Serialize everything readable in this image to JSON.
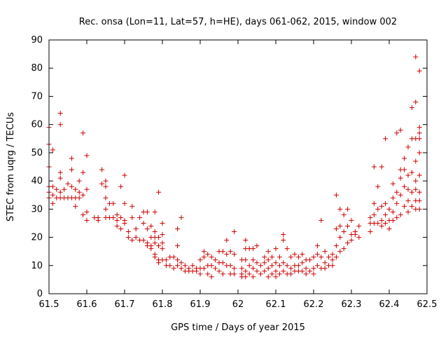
{
  "chart_data": {
    "type": "scatter",
    "title": "Rec. onsa (Lon=11, Lat=57, h=HE), days 061-062, 2015, window 002",
    "xlabel": "GPS time / Days of year 2015",
    "ylabel": "STEC from uqrg / TECUs",
    "xlim": [
      61.5,
      62.5
    ],
    "ylim": [
      0,
      90
    ],
    "xticks": [
      "61.5",
      "61.6",
      "61.7",
      "61.8",
      "61.9",
      "62",
      "62.1",
      "62.2",
      "62.3",
      "62.4",
      "62.5"
    ],
    "yticks": [
      "0",
      "10",
      "20",
      "30",
      "40",
      "50",
      "60",
      "70",
      "80",
      "90"
    ],
    "grid": false,
    "legend": "none",
    "marker": "+",
    "color": "#cc0000",
    "points": [
      [
        61.5,
        59
      ],
      [
        61.5,
        53
      ],
      [
        61.5,
        45
      ],
      [
        61.5,
        38
      ],
      [
        61.5,
        36
      ],
      [
        61.5,
        34
      ],
      [
        61.51,
        51
      ],
      [
        61.51,
        38
      ],
      [
        61.51,
        35
      ],
      [
        61.51,
        32
      ],
      [
        61.52,
        37
      ],
      [
        61.52,
        34
      ],
      [
        61.53,
        64
      ],
      [
        61.53,
        60
      ],
      [
        61.53,
        43
      ],
      [
        61.53,
        41
      ],
      [
        61.53,
        36
      ],
      [
        61.53,
        34
      ],
      [
        61.54,
        37
      ],
      [
        61.54,
        34
      ],
      [
        61.55,
        39
      ],
      [
        61.55,
        34
      ],
      [
        61.56,
        48
      ],
      [
        61.56,
        44
      ],
      [
        61.56,
        38
      ],
      [
        61.56,
        34
      ],
      [
        61.57,
        37
      ],
      [
        61.57,
        34
      ],
      [
        61.57,
        31
      ],
      [
        61.58,
        40
      ],
      [
        61.58,
        36
      ],
      [
        61.58,
        34
      ],
      [
        61.59,
        57
      ],
      [
        61.59,
        43
      ],
      [
        61.59,
        35
      ],
      [
        61.59,
        28
      ],
      [
        61.6,
        49
      ],
      [
        61.6,
        37
      ],
      [
        61.6,
        29
      ],
      [
        61.6,
        26
      ],
      [
        61.62,
        27
      ],
      [
        61.63,
        27
      ],
      [
        61.63,
        26
      ],
      [
        61.64,
        44
      ],
      [
        61.64,
        39
      ],
      [
        61.65,
        40
      ],
      [
        61.65,
        38
      ],
      [
        61.65,
        34
      ],
      [
        61.65,
        30
      ],
      [
        61.65,
        27
      ],
      [
        61.66,
        32
      ],
      [
        61.66,
        27
      ],
      [
        61.67,
        32
      ],
      [
        61.67,
        27
      ],
      [
        61.68,
        28
      ],
      [
        61.68,
        26
      ],
      [
        61.68,
        24
      ],
      [
        61.69,
        38
      ],
      [
        61.69,
        27
      ],
      [
        61.69,
        23
      ],
      [
        61.7,
        42
      ],
      [
        61.7,
        32
      ],
      [
        61.7,
        26
      ],
      [
        61.7,
        25
      ],
      [
        61.71,
        22
      ],
      [
        61.71,
        20
      ],
      [
        61.72,
        31
      ],
      [
        61.72,
        27
      ],
      [
        61.72,
        19
      ],
      [
        61.73,
        23
      ],
      [
        61.73,
        20
      ],
      [
        61.74,
        27
      ],
      [
        61.74,
        19
      ],
      [
        61.75,
        29
      ],
      [
        61.75,
        25
      ],
      [
        61.75,
        19
      ],
      [
        61.76,
        29
      ],
      [
        61.76,
        23
      ],
      [
        61.76,
        18
      ],
      [
        61.76,
        17
      ],
      [
        61.77,
        24
      ],
      [
        61.77,
        20
      ],
      [
        61.77,
        17
      ],
      [
        61.77,
        16
      ],
      [
        61.78,
        29
      ],
      [
        61.78,
        22
      ],
      [
        61.78,
        20
      ],
      [
        61.78,
        18
      ],
      [
        61.78,
        14
      ],
      [
        61.78,
        13
      ],
      [
        61.79,
        36
      ],
      [
        61.79,
        20
      ],
      [
        61.79,
        17
      ],
      [
        61.79,
        12
      ],
      [
        61.79,
        11
      ],
      [
        61.8,
        25
      ],
      [
        61.8,
        21
      ],
      [
        61.8,
        18
      ],
      [
        61.8,
        16
      ],
      [
        61.8,
        12
      ],
      [
        61.81,
        12
      ],
      [
        61.81,
        10
      ],
      [
        61.82,
        13
      ],
      [
        61.82,
        10
      ],
      [
        61.83,
        13
      ],
      [
        61.83,
        9
      ],
      [
        61.84,
        23
      ],
      [
        61.84,
        17
      ],
      [
        61.84,
        12
      ],
      [
        61.84,
        10
      ],
      [
        61.85,
        27
      ],
      [
        61.85,
        11
      ],
      [
        61.85,
        9
      ],
      [
        61.86,
        10
      ],
      [
        61.86,
        8
      ],
      [
        61.87,
        9
      ],
      [
        61.87,
        8
      ],
      [
        61.88,
        10
      ],
      [
        61.88,
        8
      ],
      [
        61.89,
        9
      ],
      [
        61.89,
        8
      ],
      [
        61.9,
        12
      ],
      [
        61.9,
        9
      ],
      [
        61.9,
        7
      ],
      [
        61.91,
        15
      ],
      [
        61.91,
        13
      ],
      [
        61.91,
        9
      ],
      [
        61.92,
        14
      ],
      [
        61.92,
        10
      ],
      [
        61.92,
        7
      ],
      [
        61.93,
        13
      ],
      [
        61.93,
        10
      ],
      [
        61.93,
        6
      ],
      [
        61.94,
        12
      ],
      [
        61.94,
        9
      ],
      [
        61.95,
        15
      ],
      [
        61.95,
        11
      ],
      [
        61.95,
        8
      ],
      [
        61.96,
        15
      ],
      [
        61.96,
        11
      ],
      [
        61.96,
        7
      ],
      [
        61.97,
        19
      ],
      [
        61.97,
        14
      ],
      [
        61.97,
        10
      ],
      [
        61.98,
        15
      ],
      [
        61.98,
        10
      ],
      [
        61.98,
        7
      ],
      [
        61.99,
        22
      ],
      [
        61.99,
        14
      ],
      [
        61.99,
        9
      ],
      [
        61.99,
        7
      ],
      [
        62.01,
        12
      ],
      [
        62.01,
        9
      ],
      [
        62.01,
        7
      ],
      [
        62.01,
        6
      ],
      [
        62.02,
        19
      ],
      [
        62.02,
        16
      ],
      [
        62.02,
        12
      ],
      [
        62.02,
        8
      ],
      [
        62.02,
        6
      ],
      [
        62.03,
        16
      ],
      [
        62.03,
        10
      ],
      [
        62.03,
        7
      ],
      [
        62.04,
        16
      ],
      [
        62.04,
        12
      ],
      [
        62.04,
        9
      ],
      [
        62.04,
        6
      ],
      [
        62.05,
        17
      ],
      [
        62.05,
        11
      ],
      [
        62.05,
        8
      ],
      [
        62.06,
        10
      ],
      [
        62.06,
        7
      ],
      [
        62.07,
        13
      ],
      [
        62.07,
        11
      ],
      [
        62.07,
        8
      ],
      [
        62.08,
        15
      ],
      [
        62.08,
        12
      ],
      [
        62.08,
        9
      ],
      [
        62.08,
        6
      ],
      [
        62.09,
        13
      ],
      [
        62.09,
        10
      ],
      [
        62.09,
        7
      ],
      [
        62.1,
        16
      ],
      [
        62.1,
        11
      ],
      [
        62.1,
        8
      ],
      [
        62.1,
        6
      ],
      [
        62.11,
        13
      ],
      [
        62.11,
        10
      ],
      [
        62.11,
        7
      ],
      [
        62.12,
        21
      ],
      [
        62.12,
        19
      ],
      [
        62.12,
        11
      ],
      [
        62.12,
        8
      ],
      [
        62.13,
        16
      ],
      [
        62.13,
        10
      ],
      [
        62.13,
        7
      ],
      [
        62.14,
        13
      ],
      [
        62.14,
        9
      ],
      [
        62.14,
        7
      ],
      [
        62.15,
        14
      ],
      [
        62.15,
        10
      ],
      [
        62.15,
        8
      ],
      [
        62.16,
        13
      ],
      [
        62.16,
        10
      ],
      [
        62.16,
        8
      ],
      [
        62.17,
        14
      ],
      [
        62.17,
        11
      ],
      [
        62.17,
        8
      ],
      [
        62.18,
        12
      ],
      [
        62.18,
        9
      ],
      [
        62.18,
        7
      ],
      [
        62.19,
        12
      ],
      [
        62.19,
        8
      ],
      [
        62.2,
        13
      ],
      [
        62.2,
        9
      ],
      [
        62.2,
        7
      ],
      [
        62.21,
        17
      ],
      [
        62.21,
        14
      ],
      [
        62.21,
        10
      ],
      [
        62.22,
        26
      ],
      [
        62.22,
        13
      ],
      [
        62.22,
        9
      ],
      [
        62.23,
        15
      ],
      [
        62.23,
        11
      ],
      [
        62.23,
        9
      ],
      [
        62.24,
        13
      ],
      [
        62.24,
        10
      ],
      [
        62.25,
        14
      ],
      [
        62.25,
        12
      ],
      [
        62.25,
        10
      ],
      [
        62.26,
        35
      ],
      [
        62.26,
        23
      ],
      [
        62.26,
        17
      ],
      [
        62.26,
        13
      ],
      [
        62.27,
        30
      ],
      [
        62.27,
        24
      ],
      [
        62.27,
        20
      ],
      [
        62.27,
        15
      ],
      [
        62.28,
        28
      ],
      [
        62.28,
        22
      ],
      [
        62.28,
        16
      ],
      [
        62.29,
        30
      ],
      [
        62.29,
        24
      ],
      [
        62.29,
        18
      ],
      [
        62.3,
        26
      ],
      [
        62.3,
        21
      ],
      [
        62.3,
        19
      ],
      [
        62.31,
        22
      ],
      [
        62.31,
        21
      ],
      [
        62.32,
        24
      ],
      [
        62.32,
        20
      ],
      [
        62.35,
        27
      ],
      [
        62.35,
        25
      ],
      [
        62.35,
        22
      ],
      [
        62.36,
        45
      ],
      [
        62.36,
        32
      ],
      [
        62.36,
        28
      ],
      [
        62.36,
        25
      ],
      [
        62.37,
        38
      ],
      [
        62.37,
        30
      ],
      [
        62.37,
        25
      ],
      [
        62.38,
        45
      ],
      [
        62.38,
        31
      ],
      [
        62.38,
        26
      ],
      [
        62.38,
        24
      ],
      [
        62.39,
        55
      ],
      [
        62.39,
        32
      ],
      [
        62.39,
        28
      ],
      [
        62.39,
        25
      ],
      [
        62.4,
        30
      ],
      [
        62.4,
        26
      ],
      [
        62.4,
        23
      ],
      [
        62.41,
        39
      ],
      [
        62.41,
        34
      ],
      [
        62.41,
        29
      ],
      [
        62.41,
        26
      ],
      [
        62.42,
        57
      ],
      [
        62.42,
        36
      ],
      [
        62.42,
        32
      ],
      [
        62.42,
        27
      ],
      [
        62.43,
        58
      ],
      [
        62.43,
        44
      ],
      [
        62.43,
        41
      ],
      [
        62.43,
        35
      ],
      [
        62.43,
        28
      ],
      [
        62.44,
        48
      ],
      [
        62.44,
        44
      ],
      [
        62.44,
        38
      ],
      [
        62.44,
        31
      ],
      [
        62.45,
        52
      ],
      [
        62.45,
        42
      ],
      [
        62.45,
        37
      ],
      [
        62.45,
        33
      ],
      [
        62.45,
        29
      ],
      [
        62.46,
        66
      ],
      [
        62.46,
        55
      ],
      [
        62.46,
        43
      ],
      [
        62.46,
        36
      ],
      [
        62.46,
        31
      ],
      [
        62.47,
        84
      ],
      [
        62.47,
        68
      ],
      [
        62.47,
        55
      ],
      [
        62.47,
        47
      ],
      [
        62.47,
        40
      ],
      [
        62.47,
        37
      ],
      [
        62.47,
        33
      ],
      [
        62.47,
        30
      ],
      [
        62.48,
        79
      ],
      [
        62.48,
        59
      ],
      [
        62.48,
        57
      ],
      [
        62.48,
        55
      ],
      [
        62.48,
        50
      ],
      [
        62.48,
        42
      ],
      [
        62.48,
        36
      ],
      [
        62.48,
        33
      ],
      [
        62.48,
        30
      ]
    ]
  }
}
